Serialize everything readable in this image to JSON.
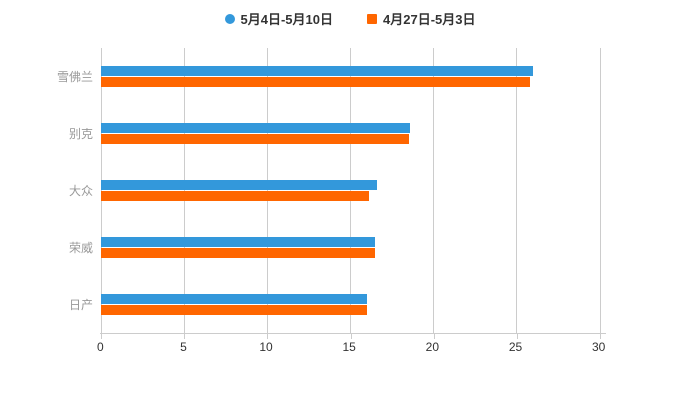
{
  "legend": {
    "items": [
      {
        "label": "5月4日-5月10日",
        "color": "#3398DB",
        "marker": "circle"
      },
      {
        "label": "4月27日-5月3日",
        "color": "#FF6600",
        "marker": "square"
      }
    ]
  },
  "chart_data": {
    "type": "bar",
    "orientation": "horizontal",
    "title": "",
    "categories": [
      "雪佛兰",
      "别克",
      "大众",
      "荣威",
      "日产"
    ],
    "series": [
      {
        "name": "5月4日-5月10日",
        "color": "#3398DB",
        "values": [
          26.0,
          18.6,
          16.6,
          16.5,
          16.0
        ]
      },
      {
        "name": "4月27日-5月3日",
        "color": "#FF6600",
        "values": [
          25.8,
          18.5,
          16.1,
          16.5,
          16.0
        ]
      }
    ],
    "xlim": [
      0,
      30
    ],
    "x_ticks": [
      0,
      5,
      10,
      15,
      20,
      25,
      30
    ],
    "grid": true,
    "legend_position": "top"
  },
  "colors": {
    "background": "#ffffff",
    "grid_line": "#cccccc",
    "axis_line": "#cccccc",
    "tick_label": "#333333",
    "category_label": "#999999",
    "legend_text": "#333333"
  }
}
